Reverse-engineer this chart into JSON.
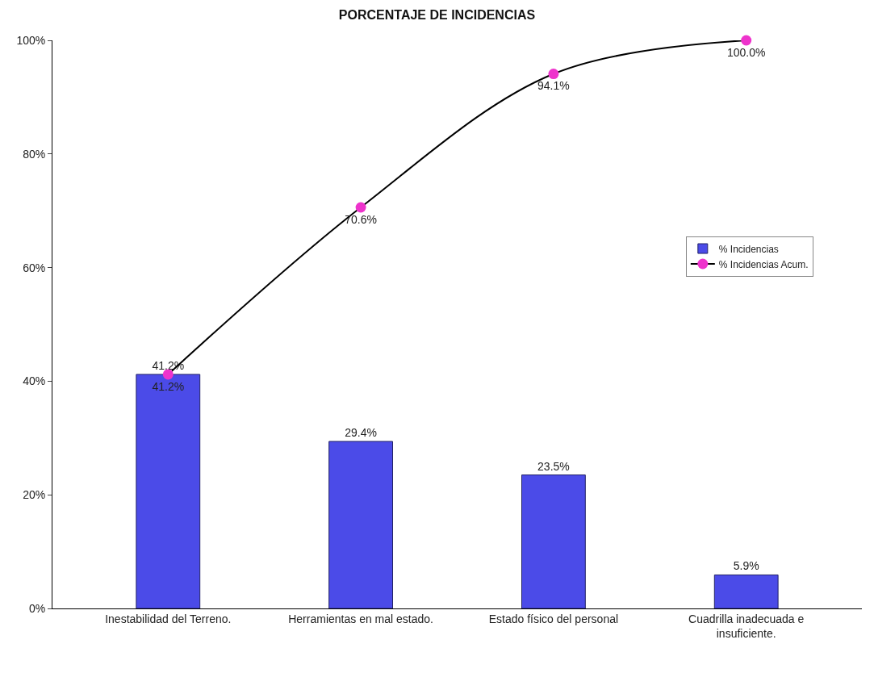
{
  "chart_data": {
    "type": "bar",
    "title": "PORCENTAJE DE INCIDENCIAS",
    "categories": [
      "Inestabilidad del Terreno.",
      "Herramientas en mal estado.",
      "Estado físico del personal",
      "Cuadrilla inadecuada e\ninsuficiente."
    ],
    "series": [
      {
        "name": "% Incidencias",
        "color": "#4b4be8",
        "values": [
          41.2,
          29.4,
          23.5,
          5.9
        ],
        "value_labels": [
          "41.2%",
          "29.4%",
          "23.5%",
          "5.9%"
        ]
      },
      {
        "name": "% Incidencias Acum.",
        "type": "line",
        "color": "#000000",
        "colors": [
          "#ee33cc",
          "#ee33cc",
          "#ee33cc",
          "#ee33cc"
        ],
        "marker": "circle",
        "values": [
          41.2,
          70.6,
          94.1,
          100.0
        ],
        "value_labels": [
          "41.2%",
          "70.6%",
          "94.1%",
          "100.0%"
        ]
      }
    ],
    "ylim": [
      0,
      100
    ],
    "yticks": [
      {
        "value": 0,
        "label": "0%"
      },
      {
        "value": 20,
        "label": "20%"
      },
      {
        "value": 40,
        "label": "40%"
      },
      {
        "value": 60,
        "label": "60%"
      },
      {
        "value": 80,
        "label": "80%"
      },
      {
        "value": 100,
        "label": "100%"
      }
    ],
    "grid": false,
    "legend": "right"
  }
}
